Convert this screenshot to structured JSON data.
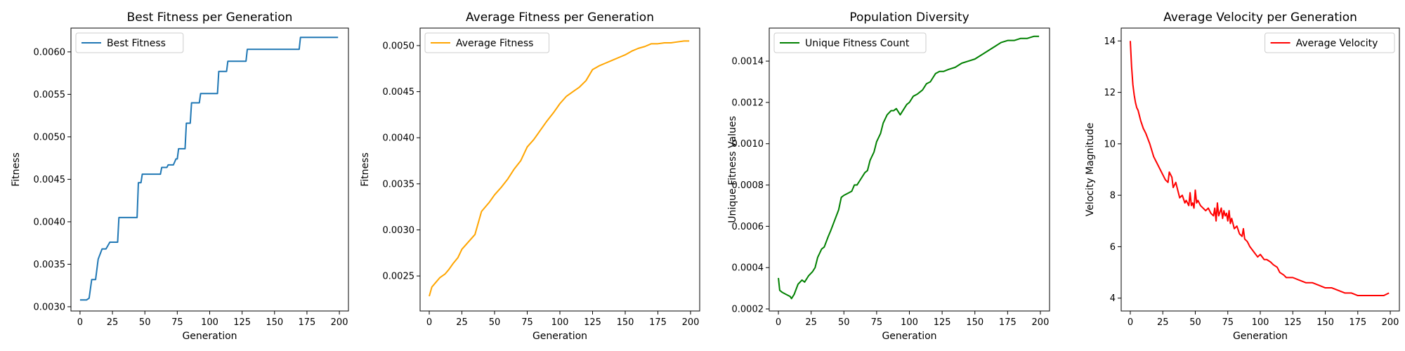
{
  "chart_data": [
    {
      "type": "line",
      "title": "Best Fitness per Generation",
      "xlabel": "Generation",
      "ylabel": "Fitness",
      "xlim": [
        -7,
        207
      ],
      "ylim": [
        0.00295,
        0.00628
      ],
      "xticks": [
        0,
        25,
        50,
        75,
        100,
        125,
        150,
        175,
        200
      ],
      "yticks": [
        0.003,
        0.0035,
        0.004,
        0.0045,
        0.005,
        0.0055,
        0.006
      ],
      "ytick_labels": [
        "0.0030",
        "0.0035",
        "0.0040",
        "0.0045",
        "0.0050",
        "0.0055",
        "0.0060"
      ],
      "legend": "top-left",
      "grid": false,
      "series": [
        {
          "name": "Best Fitness",
          "color": "#1f77b4",
          "step": true,
          "x": [
            0,
            5,
            7,
            9,
            12,
            14,
            17,
            20,
            23,
            29,
            30,
            44,
            45,
            47,
            48,
            62,
            63,
            67,
            68,
            72,
            74,
            75,
            76,
            81,
            82,
            85,
            86,
            92,
            93,
            106,
            107,
            113,
            114,
            128,
            129,
            169,
            170,
            199
          ],
          "y": [
            0.00308,
            0.00308,
            0.0031,
            0.00332,
            0.00332,
            0.00356,
            0.00368,
            0.00368,
            0.00376,
            0.00376,
            0.00405,
            0.00405,
            0.00446,
            0.00446,
            0.00456,
            0.00456,
            0.00464,
            0.00464,
            0.00467,
            0.00467,
            0.00474,
            0.00474,
            0.00486,
            0.00486,
            0.00516,
            0.00516,
            0.0054,
            0.0054,
            0.00551,
            0.00551,
            0.00577,
            0.00577,
            0.00589,
            0.00589,
            0.00603,
            0.00603,
            0.00617,
            0.00617
          ]
        }
      ]
    },
    {
      "type": "line",
      "title": "Average Fitness per Generation",
      "xlabel": "Generation",
      "ylabel": "Fitness",
      "xlim": [
        -7,
        207
      ],
      "ylim": [
        0.00212,
        0.00519
      ],
      "xticks": [
        0,
        25,
        50,
        75,
        100,
        125,
        150,
        175,
        200
      ],
      "yticks": [
        0.0025,
        0.003,
        0.0035,
        0.004,
        0.0045,
        0.005
      ],
      "ytick_labels": [
        "0.0025",
        "0.0030",
        "0.0035",
        "0.0040",
        "0.0045",
        "0.0050"
      ],
      "legend": "top-left",
      "grid": false,
      "series": [
        {
          "name": "Average Fitness",
          "color": "#ffa500",
          "step": false,
          "x": [
            0,
            2,
            5,
            8,
            12,
            15,
            18,
            22,
            25,
            30,
            35,
            38,
            40,
            43,
            46,
            50,
            55,
            60,
            65,
            70,
            75,
            80,
            85,
            90,
            95,
            100,
            105,
            110,
            115,
            120,
            125,
            130,
            135,
            140,
            145,
            150,
            155,
            160,
            165,
            170,
            175,
            180,
            185,
            190,
            195,
            199
          ],
          "y": [
            0.00228,
            0.00238,
            0.00243,
            0.00248,
            0.00252,
            0.00257,
            0.00263,
            0.0027,
            0.00279,
            0.00287,
            0.00295,
            0.0031,
            0.0032,
            0.00325,
            0.0033,
            0.00338,
            0.00346,
            0.00355,
            0.00366,
            0.00375,
            0.0039,
            0.00398,
            0.00408,
            0.00418,
            0.00427,
            0.00437,
            0.00445,
            0.0045,
            0.00455,
            0.00462,
            0.00474,
            0.00478,
            0.00481,
            0.00484,
            0.00487,
            0.0049,
            0.00494,
            0.00497,
            0.00499,
            0.00502,
            0.00502,
            0.00503,
            0.00503,
            0.00504,
            0.00505,
            0.00505
          ]
        }
      ]
    },
    {
      "type": "line",
      "title": "Population Diversity",
      "xlabel": "Generation",
      "ylabel": "Unique Fitness Values",
      "xlim": [
        -7,
        207
      ],
      "ylim": [
        0.00019,
        0.00156
      ],
      "xticks": [
        0,
        25,
        50,
        75,
        100,
        125,
        150,
        175,
        200
      ],
      "yticks": [
        0.0002,
        0.0004,
        0.0006,
        0.0008,
        0.001,
        0.0012,
        0.0014
      ],
      "ytick_labels": [
        "0.0002",
        "0.0004",
        "0.0006",
        "0.0008",
        "0.0010",
        "0.0012",
        "0.0014"
      ],
      "legend": "top-left",
      "grid": false,
      "series": [
        {
          "name": "Unique Fitness Count",
          "color": "#008000",
          "step": false,
          "x": [
            0,
            1,
            3,
            6,
            9,
            10,
            12,
            15,
            18,
            20,
            23,
            26,
            28,
            30,
            33,
            35,
            38,
            40,
            43,
            46,
            48,
            50,
            53,
            56,
            58,
            60,
            63,
            66,
            68,
            70,
            73,
            75,
            78,
            80,
            83,
            86,
            88,
            90,
            93,
            96,
            98,
            100,
            103,
            106,
            108,
            110,
            113,
            116,
            118,
            120,
            123,
            126,
            130,
            135,
            140,
            145,
            150,
            155,
            160,
            165,
            170,
            175,
            180,
            185,
            190,
            195,
            199
          ],
          "y": [
            0.00035,
            0.00029,
            0.00028,
            0.00027,
            0.00026,
            0.00025,
            0.00027,
            0.00032,
            0.00034,
            0.00033,
            0.00036,
            0.00038,
            0.0004,
            0.00045,
            0.00049,
            0.0005,
            0.00055,
            0.00058,
            0.00063,
            0.00068,
            0.00074,
            0.00075,
            0.00076,
            0.00077,
            0.0008,
            0.0008,
            0.00083,
            0.00086,
            0.00087,
            0.00092,
            0.00096,
            0.00101,
            0.00105,
            0.0011,
            0.00114,
            0.00116,
            0.00116,
            0.00117,
            0.00114,
            0.00117,
            0.00119,
            0.0012,
            0.00123,
            0.00124,
            0.00125,
            0.00126,
            0.00129,
            0.0013,
            0.00132,
            0.00134,
            0.00135,
            0.00135,
            0.00136,
            0.00137,
            0.00139,
            0.0014,
            0.00141,
            0.00143,
            0.00145,
            0.00147,
            0.00149,
            0.0015,
            0.0015,
            0.00151,
            0.00151,
            0.00152,
            0.00152
          ]
        }
      ]
    },
    {
      "type": "line",
      "title": "Average Velocity per Generation",
      "xlabel": "Generation",
      "ylabel": "Velocity Magnitude",
      "xlim": [
        -7,
        207
      ],
      "ylim": [
        3.5,
        14.5
      ],
      "xticks": [
        0,
        25,
        50,
        75,
        100,
        125,
        150,
        175,
        200
      ],
      "yticks": [
        4,
        6,
        8,
        10,
        12,
        14
      ],
      "ytick_labels": [
        "4",
        "6",
        "8",
        "10",
        "12",
        "14"
      ],
      "legend": "top-right",
      "grid": false,
      "series": [
        {
          "name": "Average Velocity",
          "color": "#ff0000",
          "step": false,
          "x": [
            0,
            1,
            2,
            3,
            4,
            5,
            6,
            8,
            10,
            12,
            15,
            18,
            20,
            22,
            25,
            27,
            29,
            30,
            32,
            33,
            35,
            37,
            38,
            40,
            42,
            43,
            45,
            46,
            47,
            48,
            49,
            50,
            51,
            52,
            54,
            56,
            58,
            60,
            62,
            64,
            65,
            66,
            67,
            68,
            70,
            71,
            72,
            73,
            74,
            75,
            76,
            77,
            78,
            80,
            82,
            84,
            86,
            87,
            88,
            90,
            92,
            95,
            98,
            100,
            103,
            105,
            108,
            110,
            113,
            115,
            118,
            120,
            125,
            130,
            135,
            140,
            145,
            150,
            155,
            160,
            165,
            170,
            175,
            180,
            185,
            190,
            195,
            199
          ],
          "y": [
            14.0,
            13.0,
            12.3,
            11.9,
            11.6,
            11.4,
            11.3,
            10.9,
            10.6,
            10.4,
            10.0,
            9.5,
            9.3,
            9.1,
            8.8,
            8.6,
            8.5,
            8.9,
            8.7,
            8.3,
            8.5,
            8.1,
            7.9,
            8.0,
            7.7,
            7.8,
            7.6,
            8.1,
            7.6,
            7.7,
            7.5,
            8.2,
            7.7,
            7.8,
            7.6,
            7.5,
            7.4,
            7.5,
            7.3,
            7.2,
            7.5,
            7.0,
            7.7,
            7.2,
            7.5,
            7.1,
            7.4,
            7.2,
            7.3,
            7.0,
            7.4,
            6.9,
            7.1,
            6.7,
            6.8,
            6.5,
            6.4,
            6.7,
            6.3,
            6.2,
            6.0,
            5.8,
            5.6,
            5.7,
            5.5,
            5.5,
            5.4,
            5.3,
            5.2,
            5.0,
            4.9,
            4.8,
            4.8,
            4.7,
            4.6,
            4.6,
            4.5,
            4.4,
            4.4,
            4.3,
            4.2,
            4.2,
            4.1,
            4.1,
            4.1,
            4.1,
            4.1,
            4.2
          ]
        }
      ]
    }
  ]
}
